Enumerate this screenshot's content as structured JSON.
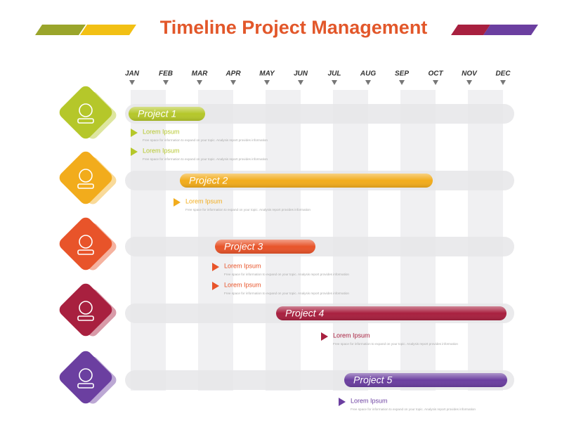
{
  "title": "Timeline Project Management",
  "months": [
    "JAN",
    "FEB",
    "MAR",
    "APR",
    "MAY",
    "JUN",
    "JUL",
    "AUG",
    "SEP",
    "OCT",
    "NOV",
    "DEC"
  ],
  "projects": [
    {
      "name": "Project 1",
      "items": [
        {
          "heading": "Lorem Ipsum",
          "text": "Free space for information to expand on your topic. Analysis report provides information"
        },
        {
          "heading": "Lorem Ipsum",
          "text": "Free space for information to expand on your topic. Analysis report provides information"
        }
      ]
    },
    {
      "name": "Project 2",
      "items": [
        {
          "heading": "Lorem Ipsum",
          "text": "Free space for information to expand on your topic. Analysis report provides information"
        }
      ]
    },
    {
      "name": "Project 3",
      "items": [
        {
          "heading": "Lorem Ipsum",
          "text": "Free space for information to expand on your topic. Analysis report provides information"
        },
        {
          "heading": "Lorem Ipsum",
          "text": "Free space for information to expand on your topic. Analysis report provides information"
        }
      ]
    },
    {
      "name": "Project 4",
      "items": [
        {
          "heading": "Lorem Ipsum",
          "text": "Free space for information to expand on your topic. Analysis report provides information"
        }
      ]
    },
    {
      "name": "Project 5",
      "items": [
        {
          "heading": "Lorem Ipsum",
          "text": "Free space for information to expand on your topic. Analysis report provides information"
        }
      ]
    }
  ]
}
